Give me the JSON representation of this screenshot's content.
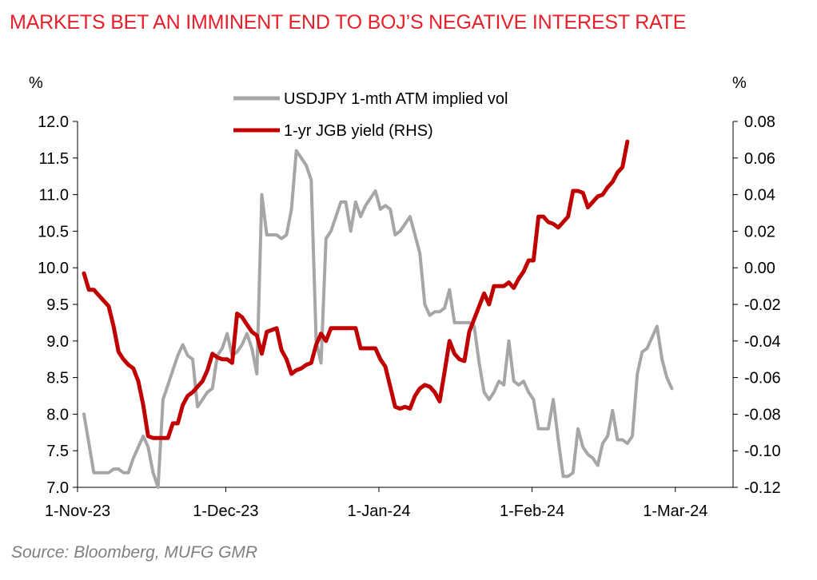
{
  "title": "MARKETS BET AN IMMINENT END TO BOJ’S NEGATIVE INTEREST RATE",
  "source": "Source: Bloomberg, MUFG GMR",
  "colors": {
    "title": "#e8202a",
    "vol_line": "#a6a6a6",
    "jgb_line": "#c00000",
    "source": "#7f7f7f"
  },
  "chart_data": {
    "type": "line",
    "left_axis": {
      "unit_label": "%",
      "ylim": [
        7.0,
        12.0
      ],
      "ticks": [
        "12.0",
        "11.5",
        "11.0",
        "10.5",
        "10.0",
        "9.5",
        "9.0",
        "8.5",
        "8.0",
        "7.5",
        "7.0"
      ]
    },
    "right_axis": {
      "unit_label": "%",
      "ylim": [
        -0.12,
        0.08
      ],
      "ticks": [
        "0.08",
        "0.06",
        "0.04",
        "0.02",
        "0.00",
        "-0.02",
        "-0.04",
        "-0.06",
        "-0.08",
        "-0.10",
        "-0.12"
      ]
    },
    "x_axis": {
      "xlim": [
        0,
        133
      ],
      "ticks": [
        {
          "label": "1-Nov-23",
          "day": 0
        },
        {
          "label": "1-Dec-23",
          "day": 30
        },
        {
          "label": "1-Jan-24",
          "day": 61
        },
        {
          "label": "1-Feb-24",
          "day": 92
        },
        {
          "label": "1-Mar-24",
          "day": 121
        }
      ]
    },
    "legend": {
      "placement": "top-center",
      "entries": [
        "USDJPY 1-mth ATM implied vol",
        "1-yr JGB yield (RHS)"
      ]
    },
    "series": [
      {
        "name": "USDJPY 1-mth ATM implied vol",
        "axis": "left",
        "points": [
          [
            0,
            8.0
          ],
          [
            1,
            7.6
          ],
          [
            2,
            7.2
          ],
          [
            3,
            7.2
          ],
          [
            4,
            7.2
          ],
          [
            5,
            7.2
          ],
          [
            6,
            7.25
          ],
          [
            7,
            7.25
          ],
          [
            8,
            7.2
          ],
          [
            9,
            7.2
          ],
          [
            10,
            7.4
          ],
          [
            12,
            7.7
          ],
          [
            13,
            7.55
          ],
          [
            14,
            7.2
          ],
          [
            15,
            7.0
          ],
          [
            16,
            8.2
          ],
          [
            17,
            8.4
          ],
          [
            18,
            8.6
          ],
          [
            19,
            8.8
          ],
          [
            20,
            8.95
          ],
          [
            21,
            8.8
          ],
          [
            22,
            8.75
          ],
          [
            23,
            8.1
          ],
          [
            24,
            8.2
          ],
          [
            25,
            8.3
          ],
          [
            26,
            8.35
          ],
          [
            27,
            8.8
          ],
          [
            28,
            8.9
          ],
          [
            29,
            9.1
          ],
          [
            30,
            8.8
          ],
          [
            31,
            8.85
          ],
          [
            32,
            8.95
          ],
          [
            33,
            9.1
          ],
          [
            34,
            8.9
          ],
          [
            35,
            8.55
          ],
          [
            36,
            11.0
          ],
          [
            37,
            10.45
          ],
          [
            38,
            10.45
          ],
          [
            39,
            10.45
          ],
          [
            40,
            10.4
          ],
          [
            41,
            10.45
          ],
          [
            42,
            10.8
          ],
          [
            43,
            11.6
          ],
          [
            44,
            11.5
          ],
          [
            45,
            11.4
          ],
          [
            46,
            11.2
          ],
          [
            47,
            9.0
          ],
          [
            48,
            8.7
          ],
          [
            49,
            10.4
          ],
          [
            50,
            10.5
          ],
          [
            51,
            10.7
          ],
          [
            52,
            10.9
          ],
          [
            53,
            10.9
          ],
          [
            54,
            10.5
          ],
          [
            55,
            10.9
          ],
          [
            56,
            10.7
          ],
          [
            57,
            10.85
          ],
          [
            58,
            10.95
          ],
          [
            59,
            11.05
          ],
          [
            60,
            10.8
          ],
          [
            61,
            10.85
          ],
          [
            62,
            10.8
          ],
          [
            63,
            10.45
          ],
          [
            64,
            10.5
          ],
          [
            65,
            10.6
          ],
          [
            66,
            10.7
          ],
          [
            67,
            10.45
          ],
          [
            68,
            10.2
          ],
          [
            69,
            9.5
          ],
          [
            70,
            9.35
          ],
          [
            71,
            9.4
          ],
          [
            72,
            9.4
          ],
          [
            73,
            9.45
          ],
          [
            74,
            9.7
          ],
          [
            75,
            9.25
          ],
          [
            76,
            9.25
          ],
          [
            77,
            9.25
          ],
          [
            78,
            9.25
          ],
          [
            79,
            9.2
          ],
          [
            80,
            8.7
          ],
          [
            81,
            8.3
          ],
          [
            82,
            8.2
          ],
          [
            83,
            8.3
          ],
          [
            84,
            8.45
          ],
          [
            85,
            8.4
          ],
          [
            86,
            9.0
          ],
          [
            87,
            8.45
          ],
          [
            88,
            8.4
          ],
          [
            89,
            8.45
          ],
          [
            90,
            8.3
          ],
          [
            91,
            8.2
          ],
          [
            92,
            7.8
          ],
          [
            93,
            7.8
          ],
          [
            94,
            7.8
          ],
          [
            95,
            8.2
          ],
          [
            96,
            7.65
          ],
          [
            97,
            7.15
          ],
          [
            98,
            7.15
          ],
          [
            99,
            7.2
          ],
          [
            100,
            7.8
          ],
          [
            101,
            7.55
          ],
          [
            102,
            7.45
          ],
          [
            103,
            7.4
          ],
          [
            104,
            7.3
          ],
          [
            105,
            7.6
          ],
          [
            106,
            7.7
          ],
          [
            107,
            8.05
          ],
          [
            108,
            7.65
          ],
          [
            109,
            7.65
          ],
          [
            110,
            7.6
          ],
          [
            111,
            7.7
          ],
          [
            112,
            8.55
          ],
          [
            113,
            8.85
          ],
          [
            114,
            8.9
          ],
          [
            115,
            9.05
          ],
          [
            116,
            9.2
          ],
          [
            117,
            8.75
          ],
          [
            118,
            8.5
          ],
          [
            119,
            8.35
          ]
        ]
      },
      {
        "name": "1-yr JGB yield (RHS)",
        "axis": "right",
        "points": [
          [
            0,
            -0.003
          ],
          [
            1,
            -0.012
          ],
          [
            2,
            -0.012
          ],
          [
            3,
            -0.015
          ],
          [
            4,
            -0.018
          ],
          [
            5,
            -0.021
          ],
          [
            6,
            -0.032
          ],
          [
            7,
            -0.046
          ],
          [
            8,
            -0.05
          ],
          [
            9,
            -0.053
          ],
          [
            10,
            -0.055
          ],
          [
            11,
            -0.062
          ],
          [
            12,
            -0.075
          ],
          [
            13,
            -0.092
          ],
          [
            14,
            -0.093
          ],
          [
            15,
            -0.093
          ],
          [
            16,
            -0.093
          ],
          [
            17,
            -0.093
          ],
          [
            18,
            -0.085
          ],
          [
            19,
            -0.085
          ],
          [
            20,
            -0.075
          ],
          [
            21,
            -0.07
          ],
          [
            22,
            -0.068
          ],
          [
            23,
            -0.065
          ],
          [
            24,
            -0.062
          ],
          [
            25,
            -0.056
          ],
          [
            26,
            -0.047
          ],
          [
            27,
            -0.049
          ],
          [
            28,
            -0.05
          ],
          [
            29,
            -0.05
          ],
          [
            30,
            -0.052
          ],
          [
            31,
            -0.025
          ],
          [
            32,
            -0.027
          ],
          [
            33,
            -0.031
          ],
          [
            34,
            -0.035
          ],
          [
            35,
            -0.037
          ],
          [
            36,
            -0.047
          ],
          [
            37,
            -0.035
          ],
          [
            38,
            -0.034
          ],
          [
            39,
            -0.033
          ],
          [
            40,
            -0.045
          ],
          [
            41,
            -0.05
          ],
          [
            42,
            -0.058
          ],
          [
            43,
            -0.056
          ],
          [
            44,
            -0.055
          ],
          [
            45,
            -0.053
          ],
          [
            46,
            -0.052
          ],
          [
            47,
            -0.042
          ],
          [
            48,
            -0.036
          ],
          [
            49,
            -0.04
          ],
          [
            50,
            -0.033
          ],
          [
            51,
            -0.033
          ],
          [
            52,
            -0.033
          ],
          [
            53,
            -0.033
          ],
          [
            54,
            -0.033
          ],
          [
            55,
            -0.033
          ],
          [
            56,
            -0.044
          ],
          [
            57,
            -0.044
          ],
          [
            58,
            -0.044
          ],
          [
            59,
            -0.044
          ],
          [
            60,
            -0.05
          ],
          [
            61,
            -0.054
          ],
          [
            62,
            -0.065
          ],
          [
            63,
            -0.076
          ],
          [
            64,
            -0.077
          ],
          [
            65,
            -0.076
          ],
          [
            66,
            -0.077
          ],
          [
            67,
            -0.07
          ],
          [
            68,
            -0.066
          ],
          [
            69,
            -0.064
          ],
          [
            70,
            -0.065
          ],
          [
            71,
            -0.068
          ],
          [
            72,
            -0.073
          ],
          [
            73,
            -0.057
          ],
          [
            74,
            -0.04
          ],
          [
            75,
            -0.047
          ],
          [
            76,
            -0.05
          ],
          [
            77,
            -0.051
          ],
          [
            78,
            -0.035
          ],
          [
            79,
            -0.028
          ],
          [
            80,
            -0.021
          ],
          [
            81,
            -0.014
          ],
          [
            82,
            -0.02
          ],
          [
            83,
            -0.01
          ],
          [
            84,
            -0.01
          ],
          [
            85,
            -0.01
          ],
          [
            86,
            -0.008
          ],
          [
            87,
            -0.011
          ],
          [
            88,
            -0.006
          ],
          [
            89,
            -0.002
          ],
          [
            90,
            0.004
          ],
          [
            91,
            0.004
          ],
          [
            92,
            0.028
          ],
          [
            93,
            0.028
          ],
          [
            94,
            0.025
          ],
          [
            95,
            0.024
          ],
          [
            96,
            0.022
          ],
          [
            97,
            0.025
          ],
          [
            98,
            0.028
          ],
          [
            99,
            0.042
          ],
          [
            100,
            0.042
          ],
          [
            101,
            0.041
          ],
          [
            102,
            0.033
          ],
          [
            103,
            0.036
          ],
          [
            104,
            0.039
          ],
          [
            105,
            0.04
          ],
          [
            106,
            0.044
          ],
          [
            107,
            0.047
          ],
          [
            108,
            0.052
          ],
          [
            109,
            0.055
          ],
          [
            110,
            0.069
          ]
        ]
      }
    ]
  }
}
